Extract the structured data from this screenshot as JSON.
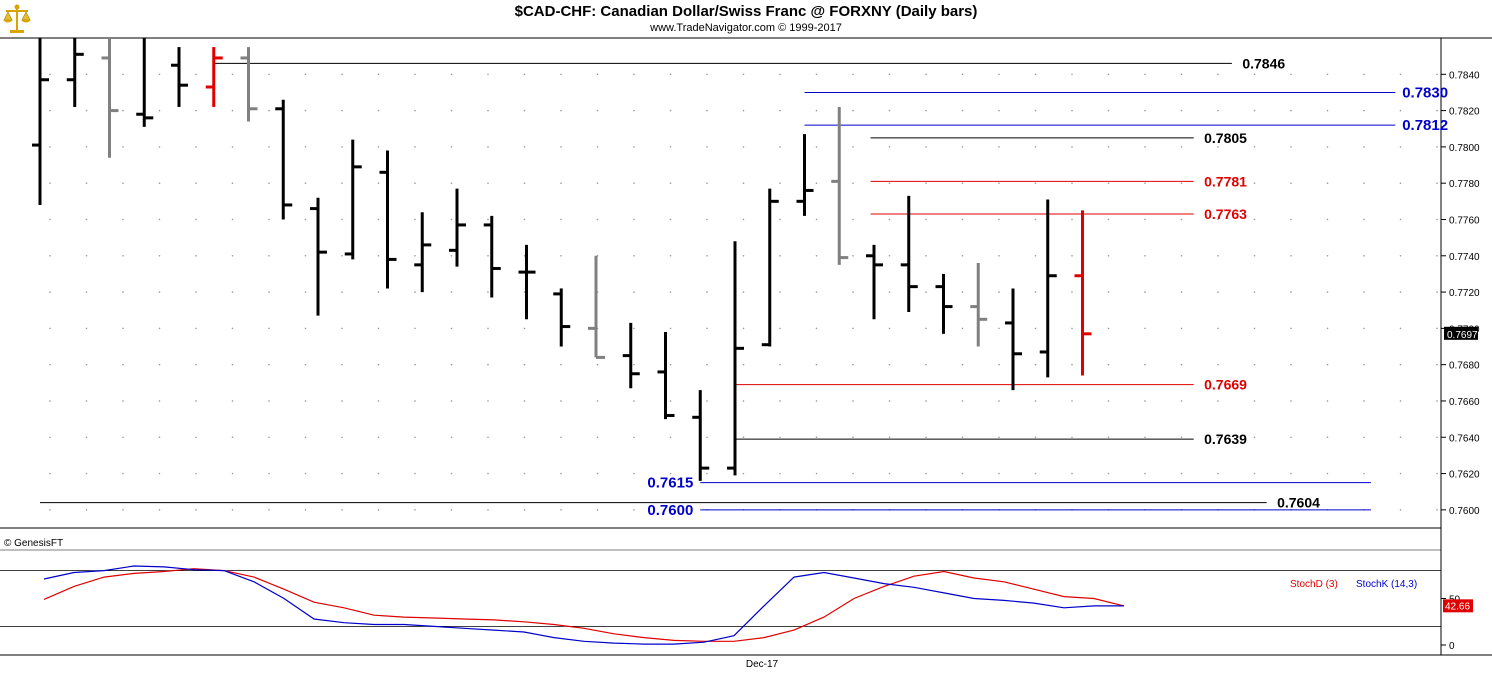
{
  "header": {
    "title": "$CAD-CHF:  Canadian Dollar/Swiss Franc @ FORXNY  (Daily bars)",
    "subtitle": "www.TradeNavigator.com © 1999-2017",
    "watermark": "© GenesisFT"
  },
  "colors": {
    "black": "#000000",
    "gray": "#808080",
    "red": "#e00000",
    "blue": "#0000cc",
    "grid_dot": "#9a9a9a"
  },
  "chart_data": {
    "type": "ohlc",
    "price_panel": {
      "ylim": [
        0.759,
        0.786
      ],
      "y_ticks": [
        "0.7600",
        "0.7620",
        "0.7640",
        "0.7660",
        "0.7680",
        "0.7700",
        "0.7720",
        "0.7740",
        "0.7760",
        "0.7780",
        "0.7800",
        "0.7820",
        "0.7840"
      ],
      "last_price_label": "0.7697",
      "x_label": "Dec-17",
      "bars": [
        {
          "o": 0.7801,
          "h": 0.787,
          "l": 0.7768,
          "c": 0.7837,
          "color": "black"
        },
        {
          "o": 0.7837,
          "h": 0.787,
          "l": 0.7822,
          "c": 0.7851,
          "color": "black"
        },
        {
          "o": 0.7849,
          "h": 0.787,
          "l": 0.7794,
          "c": 0.782,
          "color": "gray"
        },
        {
          "o": 0.7818,
          "h": 0.787,
          "l": 0.7811,
          "c": 0.7816,
          "color": "black"
        },
        {
          "o": 0.7845,
          "h": 0.7855,
          "l": 0.7822,
          "c": 0.7834,
          "color": "black"
        },
        {
          "o": 0.7833,
          "h": 0.7855,
          "l": 0.7822,
          "c": 0.7849,
          "color": "red"
        },
        {
          "o": 0.7849,
          "h": 0.7855,
          "l": 0.7814,
          "c": 0.7821,
          "color": "gray"
        },
        {
          "o": 0.7821,
          "h": 0.7826,
          "l": 0.776,
          "c": 0.7768,
          "color": "black"
        },
        {
          "o": 0.7766,
          "h": 0.7772,
          "l": 0.7707,
          "c": 0.7742,
          "color": "black"
        },
        {
          "o": 0.7741,
          "h": 0.7804,
          "l": 0.7738,
          "c": 0.7789,
          "color": "black"
        },
        {
          "o": 0.7786,
          "h": 0.7798,
          "l": 0.7722,
          "c": 0.7738,
          "color": "black"
        },
        {
          "o": 0.7735,
          "h": 0.7764,
          "l": 0.772,
          "c": 0.7746,
          "color": "black"
        },
        {
          "o": 0.7743,
          "h": 0.7777,
          "l": 0.7734,
          "c": 0.7757,
          "color": "black"
        },
        {
          "o": 0.7757,
          "h": 0.7762,
          "l": 0.7717,
          "c": 0.7733,
          "color": "black"
        },
        {
          "o": 0.7731,
          "h": 0.7746,
          "l": 0.7705,
          "c": 0.7731,
          "color": "black"
        },
        {
          "o": 0.7719,
          "h": 0.7722,
          "l": 0.769,
          "c": 0.7701,
          "color": "black"
        },
        {
          "o": 0.77,
          "h": 0.774,
          "l": 0.7684,
          "c": 0.7684,
          "color": "gray"
        },
        {
          "o": 0.7685,
          "h": 0.7703,
          "l": 0.7667,
          "c": 0.7675,
          "color": "black"
        },
        {
          "o": 0.7676,
          "h": 0.7698,
          "l": 0.765,
          "c": 0.7652,
          "color": "black"
        },
        {
          "o": 0.7651,
          "h": 0.7666,
          "l": 0.7616,
          "c": 0.7623,
          "color": "black"
        },
        {
          "o": 0.7623,
          "h": 0.7748,
          "l": 0.7619,
          "c": 0.7689,
          "color": "black"
        },
        {
          "o": 0.7691,
          "h": 0.7777,
          "l": 0.769,
          "c": 0.777,
          "color": "black"
        },
        {
          "o": 0.777,
          "h": 0.7807,
          "l": 0.7762,
          "c": 0.7776,
          "color": "black"
        },
        {
          "o": 0.7781,
          "h": 0.7822,
          "l": 0.7735,
          "c": 0.7739,
          "color": "gray"
        },
        {
          "o": 0.774,
          "h": 0.7746,
          "l": 0.7705,
          "c": 0.7735,
          "color": "black"
        },
        {
          "o": 0.7735,
          "h": 0.7773,
          "l": 0.7709,
          "c": 0.7723,
          "color": "black"
        },
        {
          "o": 0.7723,
          "h": 0.773,
          "l": 0.7697,
          "c": 0.7712,
          "color": "black"
        },
        {
          "o": 0.7712,
          "h": 0.7736,
          "l": 0.769,
          "c": 0.7705,
          "color": "gray"
        },
        {
          "o": 0.7703,
          "h": 0.7722,
          "l": 0.7666,
          "c": 0.7686,
          "color": "black"
        },
        {
          "o": 0.7687,
          "h": 0.7771,
          "l": 0.7673,
          "c": 0.7729,
          "color": "black"
        },
        {
          "o": 0.7729,
          "h": 0.7765,
          "l": 0.7674,
          "c": 0.7697,
          "color": "red"
        }
      ],
      "levels": [
        {
          "value": "0.7846",
          "price": 0.7846,
          "color": "black",
          "from_bar": 5,
          "to_bar": 34.3,
          "label_bar": 34.6,
          "label_size": "small"
        },
        {
          "value": "0.7830",
          "price": 0.783,
          "color": "blue",
          "from_bar": 22,
          "to_bar": 39.0,
          "label_bar": 39.2,
          "label_size": "large"
        },
        {
          "value": "0.7812",
          "price": 0.7812,
          "color": "blue",
          "from_bar": 22,
          "to_bar": 39.0,
          "label_bar": 39.2,
          "label_size": "large"
        },
        {
          "value": "0.7805",
          "price": 0.7805,
          "color": "black",
          "from_bar": 23.9,
          "to_bar": 33.2,
          "label_bar": 33.5,
          "label_size": "small"
        },
        {
          "value": "0.7781",
          "price": 0.7781,
          "color": "red",
          "from_bar": 23.9,
          "to_bar": 33.2,
          "label_bar": 33.5,
          "label_size": "small"
        },
        {
          "value": "0.7763",
          "price": 0.7763,
          "color": "red",
          "from_bar": 23.9,
          "to_bar": 33.2,
          "label_bar": 33.5,
          "label_size": "small"
        },
        {
          "value": "0.7669",
          "price": 0.7669,
          "color": "red",
          "from_bar": 20,
          "to_bar": 33.2,
          "label_bar": 33.5,
          "label_size": "small"
        },
        {
          "value": "0.7639",
          "price": 0.7639,
          "color": "black",
          "from_bar": 20,
          "to_bar": 33.2,
          "label_bar": 33.5,
          "label_size": "small"
        },
        {
          "value": "0.7615",
          "price": 0.7615,
          "color": "blue",
          "from_bar": 19,
          "to_bar": 38.3,
          "label_bar": 18.8,
          "label_size": "large",
          "label_side": "left"
        },
        {
          "value": "0.7604",
          "price": 0.7604,
          "color": "black",
          "from_bar": 0,
          "to_bar": 35.3,
          "label_bar": 35.6,
          "label_size": "small"
        },
        {
          "value": "0.7600",
          "price": 0.76,
          "color": "blue",
          "from_bar": 19,
          "to_bar": 38.3,
          "label_bar": 18.8,
          "label_size": "large",
          "label_side": "left"
        }
      ]
    },
    "indicator_panel": {
      "ylim": [
        0,
        100
      ],
      "y_ticks": [
        "0",
        "50"
      ],
      "reference_lines": [
        80,
        20
      ],
      "last_value_label": "42.66",
      "series": [
        {
          "name": "StochD (3)",
          "color": "red",
          "values": [
            49,
            63,
            73,
            77,
            79,
            82,
            80,
            73,
            60,
            46,
            40,
            32,
            30,
            29,
            28,
            27,
            25,
            22,
            18,
            12,
            8,
            5,
            4,
            4,
            8,
            16,
            30,
            50,
            63,
            74,
            79,
            72,
            68,
            60,
            52,
            50,
            42
          ]
        },
        {
          "name": "StochK (14,3)",
          "color": "blue",
          "values": [
            71,
            78,
            80,
            85,
            84,
            81,
            80,
            68,
            50,
            28,
            24,
            22,
            22,
            20,
            18,
            16,
            14,
            8,
            4,
            2,
            1,
            1,
            3,
            10,
            42,
            73,
            78,
            72,
            66,
            62,
            56,
            50,
            48,
            45,
            40,
            42,
            42
          ]
        }
      ]
    }
  }
}
